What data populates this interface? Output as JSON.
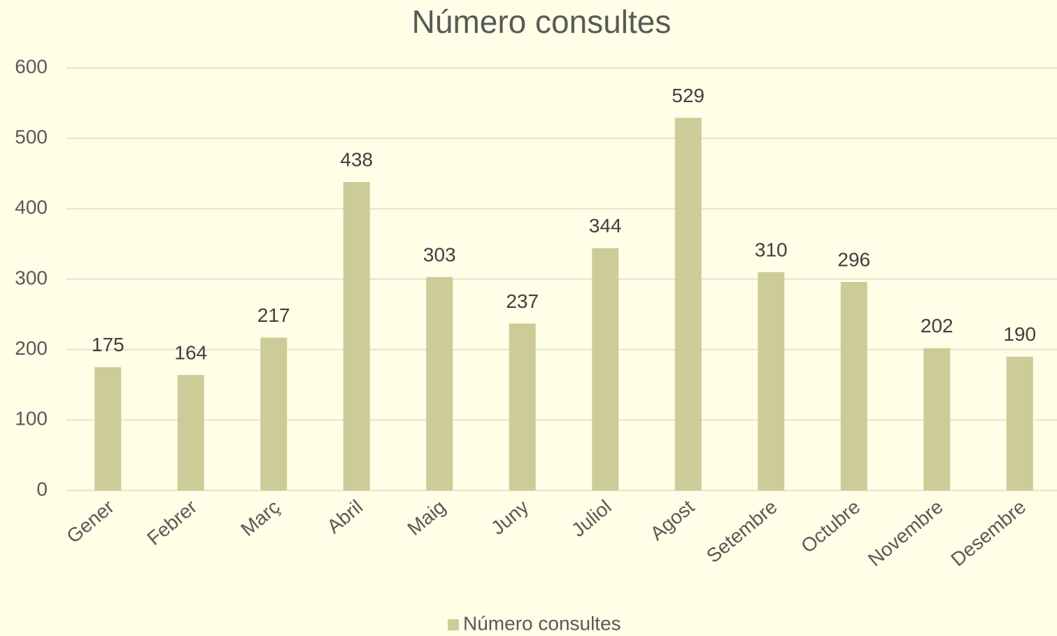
{
  "chart_data": {
    "type": "bar",
    "title": "Número consultes",
    "categories": [
      "Gener",
      "Febrer",
      "Març",
      "Abril",
      "Maig",
      "Juny",
      "Juliol",
      "Agost",
      "Setembre",
      "Octubre",
      "Novembre",
      "Desembre"
    ],
    "series": [
      {
        "name": "Número consultes",
        "color": "#cdcc98",
        "values": [
          175,
          164,
          217,
          438,
          303,
          237,
          344,
          529,
          310,
          296,
          202,
          190
        ]
      }
    ],
    "ylim": [
      0,
      600
    ],
    "yticks": [
      0,
      100,
      200,
      300,
      400,
      500,
      600
    ],
    "grid": true,
    "legend": "bottom"
  }
}
